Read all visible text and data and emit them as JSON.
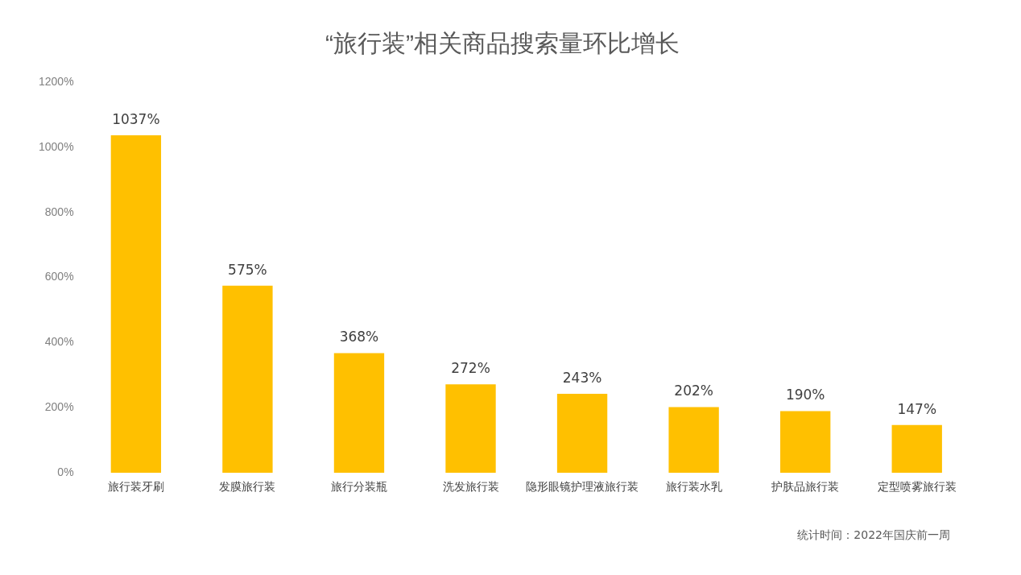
{
  "chart_data": {
    "type": "bar",
    "title": "“旅行装”相关商品搜索量环比增长",
    "categories": [
      "旅行装牙刷",
      "发膜旅行装",
      "旅行分装瓶",
      "洗发旅行装",
      "隐形眼镜护理液旅行装",
      "旅行装水乳",
      "护肤品旅行装",
      "定型喷雾旅行装"
    ],
    "values": [
      1037,
      575,
      368,
      272,
      243,
      202,
      190,
      147
    ],
    "value_labels": [
      "1037%",
      "575%",
      "368%",
      "272%",
      "243%",
      "202%",
      "190%",
      "147%"
    ],
    "color": "#ffc000",
    "ylim": [
      0,
      1200
    ],
    "yticks": [
      {
        "value": 0,
        "label": "0%"
      },
      {
        "value": 200,
        "label": "200%"
      },
      {
        "value": 400,
        "label": "400%"
      },
      {
        "value": 600,
        "label": "600%"
      },
      {
        "value": 800,
        "label": "800%"
      },
      {
        "value": 1000,
        "label": "1000%"
      },
      {
        "value": 1200,
        "label": "1200%"
      }
    ],
    "grid": false,
    "legend": false,
    "annotations": [
      "统计时间：2022年国庆前一周"
    ]
  }
}
